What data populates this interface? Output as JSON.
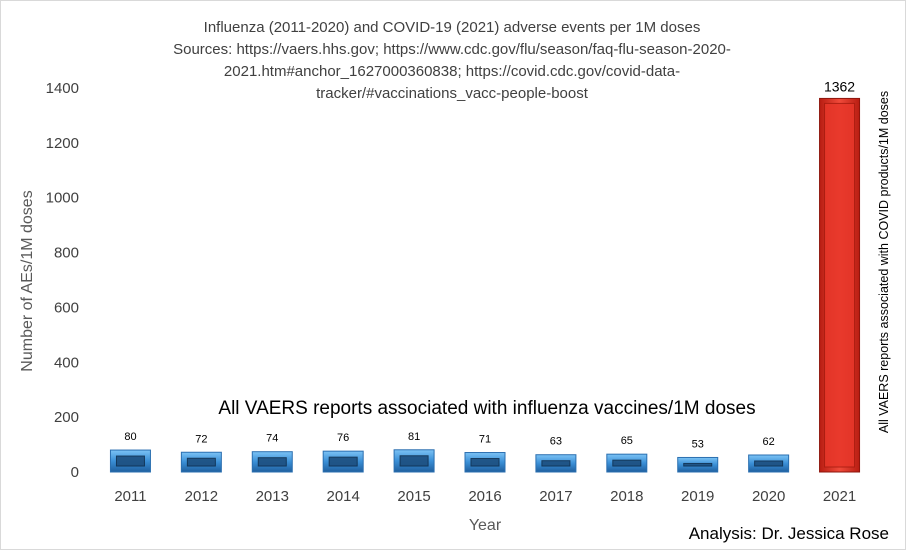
{
  "chart_data": {
    "type": "bar",
    "title_lines": [
      "Influenza (2011-2020) and COVID-19 (2021) adverse events per 1M doses",
      "Sources: https://vaers.hhs.gov; https://www.cdc.gov/flu/season/faq-flu-season-2020-",
      "2021.htm#anchor_1627000360838; https://covid.cdc.gov/covid-data-",
      "tracker/#vaccinations_vacc-people-boost"
    ],
    "xlabel": "Year",
    "ylabel": "Number of AEs/1M doses",
    "categories": [
      "2011",
      "2012",
      "2013",
      "2014",
      "2015",
      "2016",
      "2017",
      "2018",
      "2019",
      "2020",
      "2021"
    ],
    "values": [
      80,
      72,
      74,
      76,
      81,
      71,
      63,
      65,
      53,
      62,
      1362
    ],
    "data_labels": [
      "80",
      "72",
      "74",
      "76",
      "81",
      "71",
      "63",
      "65",
      "53",
      "62",
      "1362"
    ],
    "ylim": [
      0,
      1400
    ],
    "yticks": [
      0,
      200,
      400,
      600,
      800,
      1000,
      1200,
      1400
    ],
    "grid": false,
    "colors": {
      "influenza": "#3a8fd6",
      "covid": "#e8372a"
    },
    "annotations": {
      "influenza": "All VAERS reports associated with influenza vaccines/1M doses",
      "covid": "All VAERS reports associated with COVID products/1M doses",
      "credit": "Analysis: Dr. Jessica Rose"
    }
  }
}
